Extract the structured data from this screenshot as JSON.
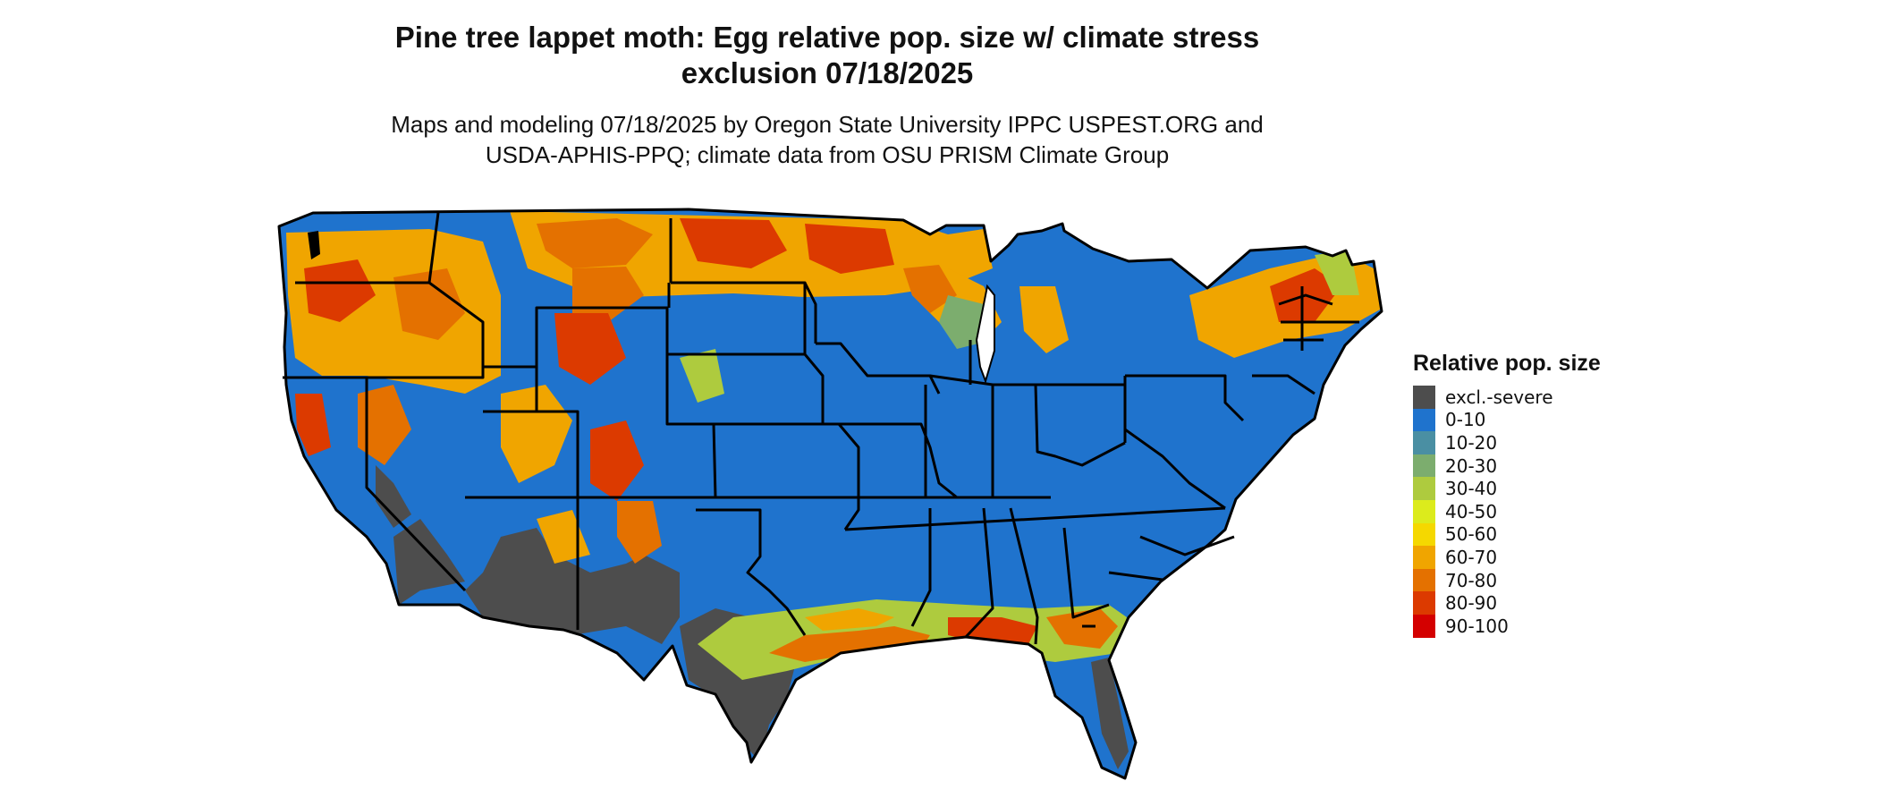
{
  "title_line1": "Pine tree lappet moth: Egg relative pop. size w/ climate stress",
  "title_line2": "exclusion 07/18/2025",
  "subtitle_line1": "Maps and modeling 07/18/2025 by Oregon State University IPPC USPEST.ORG and",
  "subtitle_line2": "USDA-APHIS-PPQ; climate data from OSU PRISM Climate Group",
  "legend": {
    "title": "Relative pop. size",
    "items": [
      {
        "label": "excl.-severe",
        "color": "#4d4d4d"
      },
      {
        "label": "0-10",
        "color": "#1f73cd"
      },
      {
        "label": "10-20",
        "color": "#4a8fa3"
      },
      {
        "label": "20-30",
        "color": "#7cad6e"
      },
      {
        "label": "30-40",
        "color": "#aecb3e"
      },
      {
        "label": "40-50",
        "color": "#dceb1c"
      },
      {
        "label": "50-60",
        "color": "#f5d800"
      },
      {
        "label": "60-70",
        "color": "#f0a500"
      },
      {
        "label": "70-80",
        "color": "#e47100"
      },
      {
        "label": "80-90",
        "color": "#dc3a00"
      },
      {
        "label": "90-100",
        "color": "#d40000"
      }
    ]
  }
}
